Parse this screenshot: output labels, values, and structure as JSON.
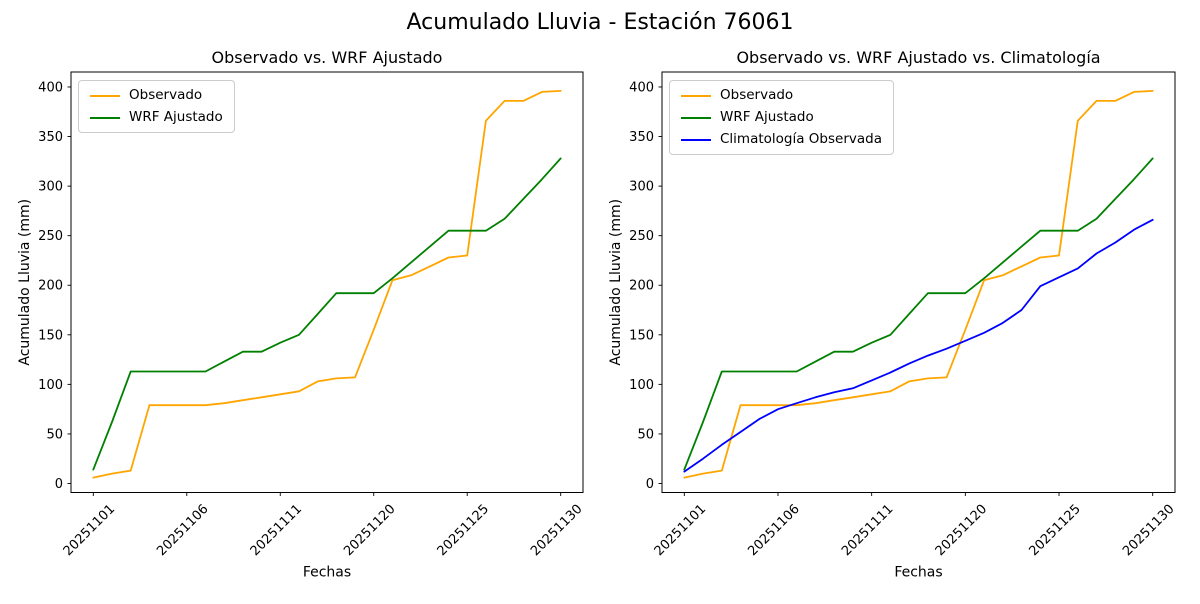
{
  "suptitle": "Acumulado Lluvia - Estación 76061",
  "chart_data": [
    {
      "type": "line",
      "title": "Observado vs. WRF Ajustado",
      "xlabel": "Fechas",
      "ylabel": "Acumulado Lluvia (mm)",
      "x_dates": [
        "20251101",
        "20251102",
        "20251103",
        "20251104",
        "20251105",
        "20251106",
        "20251107",
        "20251108",
        "20251109",
        "20251110",
        "20251111",
        "20251116",
        "20251117",
        "20251118",
        "20251119",
        "20251120",
        "20251121",
        "20251122",
        "20251123",
        "20251124",
        "20251125",
        "20251126",
        "20251127",
        "20251128",
        "20251129",
        "20251130"
      ],
      "x_tick_indices": [
        0,
        5,
        10,
        15,
        20,
        25
      ],
      "x_tick_labels": [
        "20251101",
        "20251106",
        "20251111",
        "20251120",
        "20251125",
        "20251130"
      ],
      "yticks": [
        0,
        50,
        100,
        150,
        200,
        250,
        300,
        350,
        400
      ],
      "ylim": [
        -8,
        417
      ],
      "grid": false,
      "legend_position": "upper left",
      "series": [
        {
          "name": "Observado",
          "color": "#FFA500",
          "values": [
            6,
            10,
            13,
            79,
            79,
            79,
            79,
            81,
            84,
            87,
            90,
            93,
            103,
            106,
            107,
            155,
            205,
            210,
            219,
            228,
            230,
            366,
            386,
            386,
            395,
            396
          ]
        },
        {
          "name": "WRF Ajustado",
          "color": "#008000",
          "values": [
            14,
            62,
            113,
            113,
            113,
            113,
            113,
            123,
            133,
            133,
            142,
            150,
            171,
            192,
            192,
            192,
            207,
            223,
            239,
            255,
            255,
            255,
            267,
            287,
            307,
            328
          ]
        }
      ]
    },
    {
      "type": "line",
      "title": "Observado vs. WRF Ajustado vs. Climatología",
      "xlabel": "Fechas",
      "ylabel": "Acumulado Lluvia (mm)",
      "x_dates": [
        "20251101",
        "20251102",
        "20251103",
        "20251104",
        "20251105",
        "20251106",
        "20251107",
        "20251108",
        "20251109",
        "20251110",
        "20251111",
        "20251116",
        "20251117",
        "20251118",
        "20251119",
        "20251120",
        "20251121",
        "20251122",
        "20251123",
        "20251124",
        "20251125",
        "20251126",
        "20251127",
        "20251128",
        "20251129",
        "20251130"
      ],
      "x_tick_indices": [
        0,
        5,
        10,
        15,
        20,
        25
      ],
      "x_tick_labels": [
        "20251101",
        "20251106",
        "20251111",
        "20251120",
        "20251125",
        "20251130"
      ],
      "yticks": [
        0,
        50,
        100,
        150,
        200,
        250,
        300,
        350,
        400
      ],
      "ylim": [
        -8,
        417
      ],
      "grid": false,
      "legend_position": "upper left",
      "series": [
        {
          "name": "Observado",
          "color": "#FFA500",
          "values": [
            6,
            10,
            13,
            79,
            79,
            79,
            79,
            81,
            84,
            87,
            90,
            93,
            103,
            106,
            107,
            155,
            205,
            210,
            219,
            228,
            230,
            366,
            386,
            386,
            395,
            396
          ]
        },
        {
          "name": "WRF Ajustado",
          "color": "#008000",
          "values": [
            14,
            62,
            113,
            113,
            113,
            113,
            113,
            123,
            133,
            133,
            142,
            150,
            171,
            192,
            192,
            192,
            207,
            223,
            239,
            255,
            255,
            255,
            267,
            287,
            307,
            328
          ]
        },
        {
          "name": "Climatología Observada",
          "color": "#0000FF",
          "values": [
            12,
            25,
            39,
            52,
            65,
            75,
            81,
            87,
            92,
            96,
            104,
            112,
            121,
            129,
            136,
            144,
            152,
            162,
            175,
            199,
            208,
            217,
            232,
            243,
            256,
            266
          ]
        }
      ]
    }
  ]
}
